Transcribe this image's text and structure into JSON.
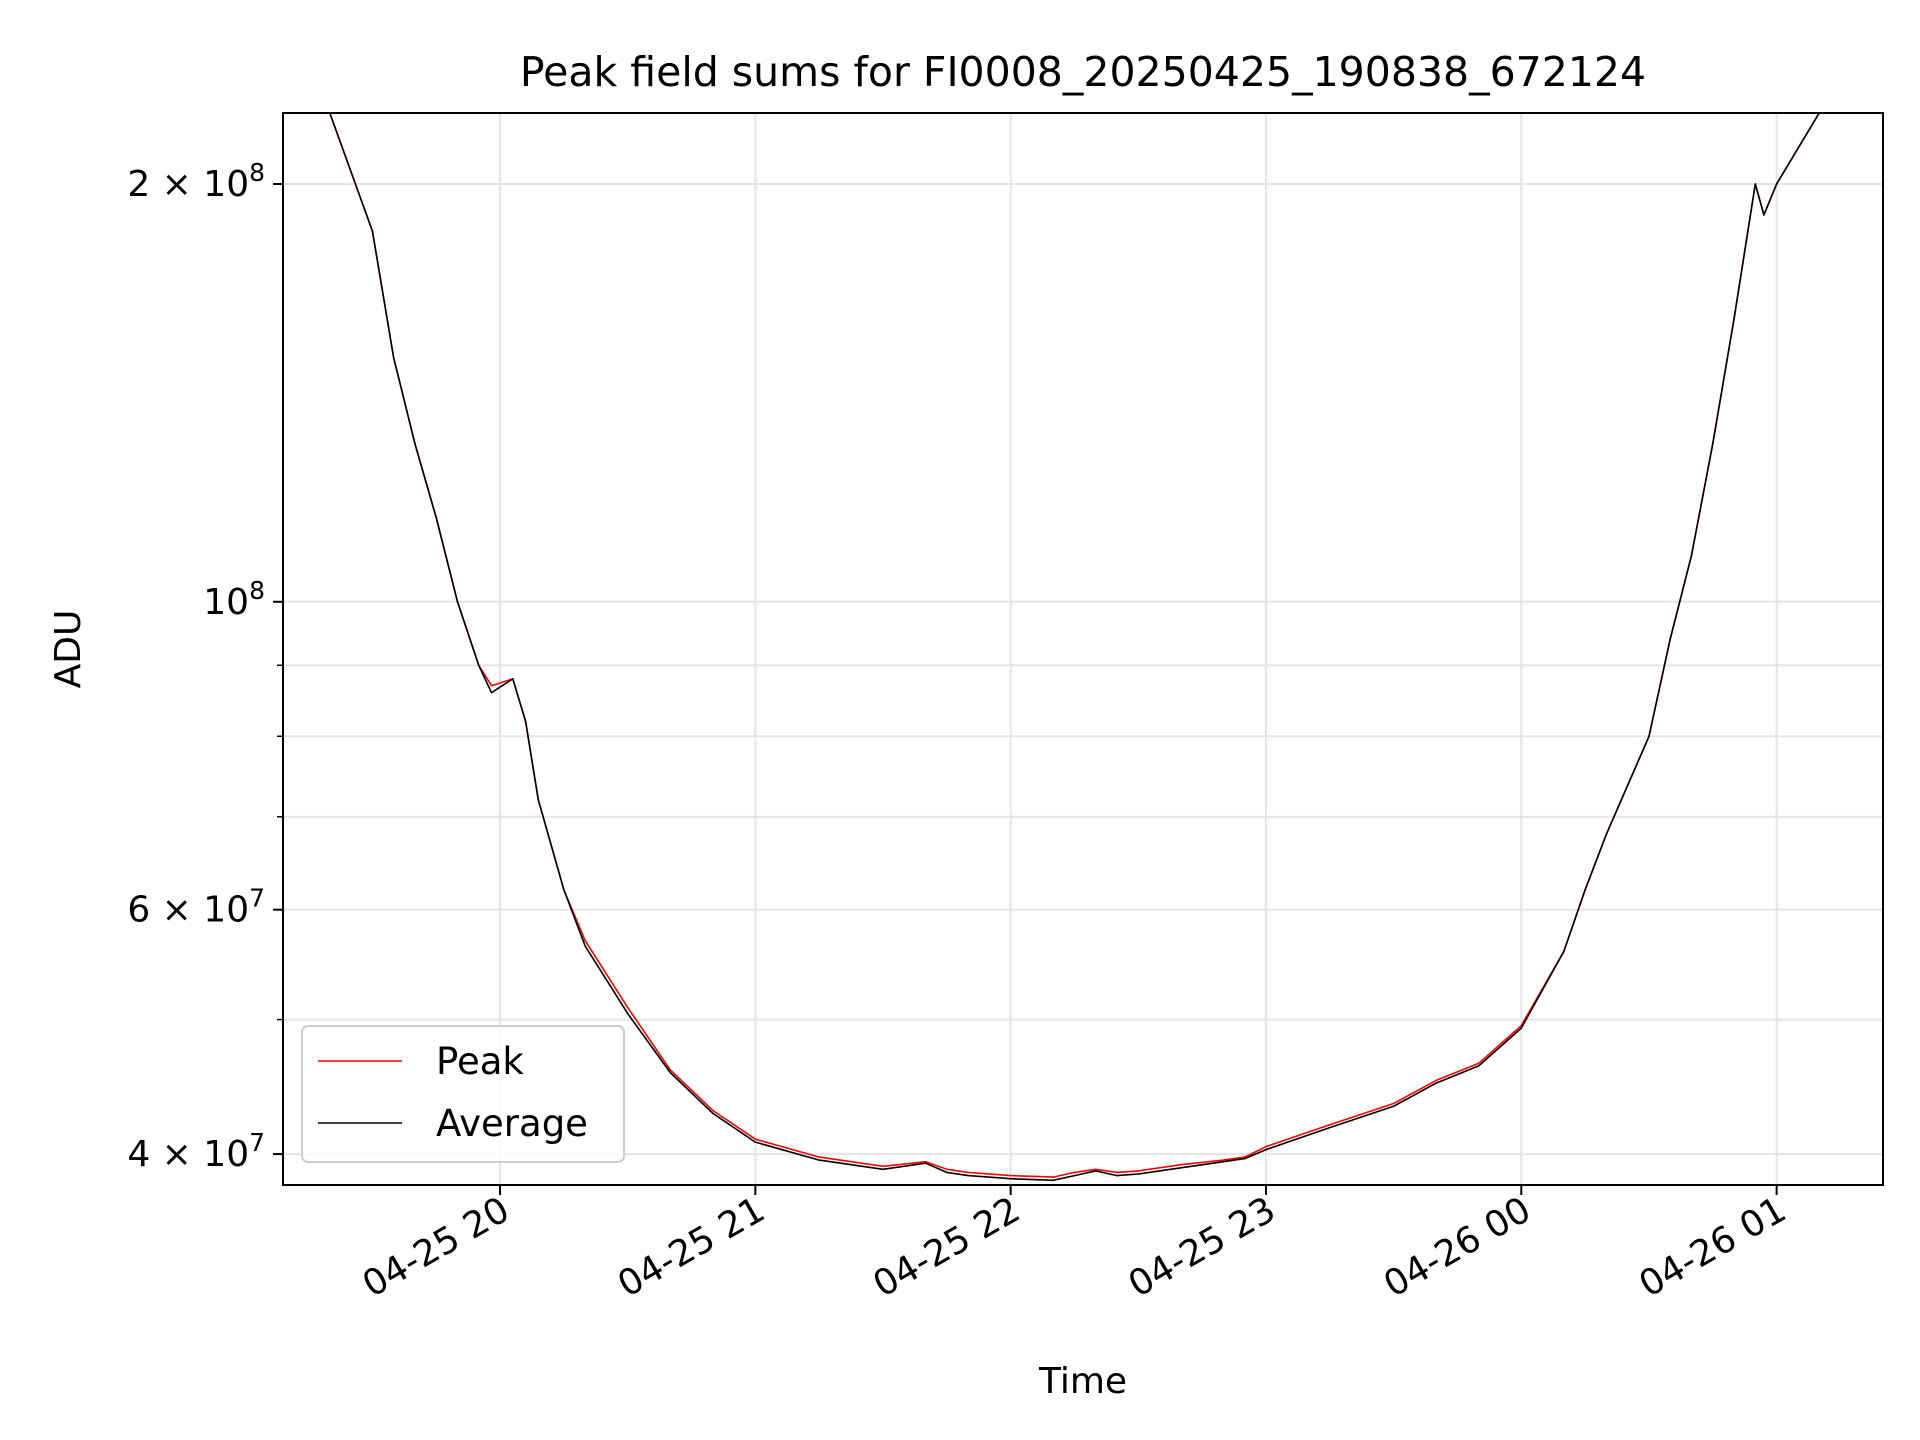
{
  "chart_data": {
    "type": "line",
    "title": "Peak field sums for FI0008_20250425_190838_672124",
    "xlabel": "Time",
    "ylabel": "ADU",
    "yscale": "log",
    "xlim": [
      "2025-04-25 19:09",
      "2025-04-26 01:25"
    ],
    "ylim": [
      38000000,
      225000000
    ],
    "grid": true,
    "legend_position": "lower-left",
    "x_ticks": [
      "2025-04-25 20:00",
      "2025-04-25 21:00",
      "2025-04-25 22:00",
      "2025-04-25 23:00",
      "2025-04-26 00:00",
      "2025-04-26 01:00"
    ],
    "x_tick_labels": [
      "04-25 20",
      "04-25 21",
      "04-25 22",
      "04-25 23",
      "04-26 00",
      "04-26 01"
    ],
    "y_major_ticks": [
      40000000,
      60000000,
      100000000,
      200000000
    ],
    "y_tick_labels": [
      {
        "coef": "4",
        "exp": "7"
      },
      {
        "coef": "6",
        "exp": "7"
      },
      {
        "coef": "",
        "exp": "8"
      },
      {
        "coef": "2",
        "exp": "8"
      }
    ],
    "y_minor_ticks": [
      50000000,
      70000000,
      80000000,
      90000000
    ],
    "series": [
      {
        "name": "Peak",
        "color": "#ff0000",
        "x": [
          "2025-04-25 19:09",
          "2025-04-25 19:20",
          "2025-04-25 19:30",
          "2025-04-25 19:35",
          "2025-04-25 19:40",
          "2025-04-25 19:45",
          "2025-04-25 19:50",
          "2025-04-25 19:55",
          "2025-04-25 19:58",
          "2025-04-25 20:03",
          "2025-04-25 20:06",
          "2025-04-25 20:09",
          "2025-04-25 20:15",
          "2025-04-25 20:20",
          "2025-04-25 20:30",
          "2025-04-25 20:40",
          "2025-04-25 20:50",
          "2025-04-25 21:00",
          "2025-04-25 21:15",
          "2025-04-25 21:30",
          "2025-04-25 21:40",
          "2025-04-25 21:45",
          "2025-04-25 21:50",
          "2025-04-25 22:00",
          "2025-04-25 22:10",
          "2025-04-25 22:15",
          "2025-04-25 22:20",
          "2025-04-25 22:25",
          "2025-04-25 22:30",
          "2025-04-25 22:40",
          "2025-04-25 22:50",
          "2025-04-25 22:55",
          "2025-04-25 23:00",
          "2025-04-25 23:15",
          "2025-04-25 23:30",
          "2025-04-25 23:40",
          "2025-04-25 23:50",
          "2025-04-26 00:00",
          "2025-04-26 00:10",
          "2025-04-26 00:15",
          "2025-04-26 00:20",
          "2025-04-26 00:30",
          "2025-04-26 00:35",
          "2025-04-26 00:40",
          "2025-04-26 00:45",
          "2025-04-26 00:50",
          "2025-04-26 00:55",
          "2025-04-26 00:57",
          "2025-04-26 01:00",
          "2025-04-26 01:10"
        ],
        "y": [
          225000000,
          225000000,
          185000000,
          150000000,
          130000000,
          115000000,
          100000000,
          90000000,
          87000000,
          88000000,
          82000000,
          72000000,
          62000000,
          57000000,
          51000000,
          46000000,
          43000000,
          41000000,
          39800000,
          39200000,
          39500000,
          39000000,
          38800000,
          38600000,
          38500000,
          38800000,
          39000000,
          38800000,
          38900000,
          39300000,
          39600000,
          39800000,
          40500000,
          42000000,
          43500000,
          45200000,
          46500000,
          49500000,
          56000000,
          62000000,
          68000000,
          80000000,
          94000000,
          108000000,
          130000000,
          160000000,
          200000000,
          190000000,
          200000000,
          225000000
        ]
      },
      {
        "name": "Average",
        "color": "#000000",
        "x": [
          "2025-04-25 19:09",
          "2025-04-25 19:20",
          "2025-04-25 19:30",
          "2025-04-25 19:35",
          "2025-04-25 19:40",
          "2025-04-25 19:45",
          "2025-04-25 19:50",
          "2025-04-25 19:55",
          "2025-04-25 19:58",
          "2025-04-25 20:03",
          "2025-04-25 20:06",
          "2025-04-25 20:09",
          "2025-04-25 20:15",
          "2025-04-25 20:20",
          "2025-04-25 20:30",
          "2025-04-25 20:40",
          "2025-04-25 20:50",
          "2025-04-25 21:00",
          "2025-04-25 21:15",
          "2025-04-25 21:30",
          "2025-04-25 21:40",
          "2025-04-25 21:45",
          "2025-04-25 21:50",
          "2025-04-25 22:00",
          "2025-04-25 22:10",
          "2025-04-25 22:15",
          "2025-04-25 22:20",
          "2025-04-25 22:25",
          "2025-04-25 22:30",
          "2025-04-25 22:40",
          "2025-04-25 22:50",
          "2025-04-25 22:55",
          "2025-04-25 23:00",
          "2025-04-25 23:15",
          "2025-04-25 23:30",
          "2025-04-25 23:40",
          "2025-04-25 23:50",
          "2025-04-26 00:00",
          "2025-04-26 00:10",
          "2025-04-26 00:15",
          "2025-04-26 00:20",
          "2025-04-26 00:30",
          "2025-04-26 00:35",
          "2025-04-26 00:40",
          "2025-04-26 00:45",
          "2025-04-26 00:50",
          "2025-04-26 00:55",
          "2025-04-26 00:57",
          "2025-04-26 01:00",
          "2025-04-26 01:10"
        ],
        "y": [
          225000000,
          225000000,
          185000000,
          150000000,
          130000000,
          115000000,
          100000000,
          90000000,
          86000000,
          88000000,
          82000000,
          72000000,
          62000000,
          56500000,
          50500000,
          45800000,
          42800000,
          40800000,
          39600000,
          39000000,
          39400000,
          38800000,
          38600000,
          38400000,
          38300000,
          38600000,
          38900000,
          38600000,
          38700000,
          39100000,
          39500000,
          39700000,
          40300000,
          41800000,
          43300000,
          45000000,
          46300000,
          49300000,
          56000000,
          62000000,
          68000000,
          80000000,
          94000000,
          108000000,
          130000000,
          160000000,
          200000000,
          190000000,
          200000000,
          225000000
        ]
      }
    ]
  }
}
